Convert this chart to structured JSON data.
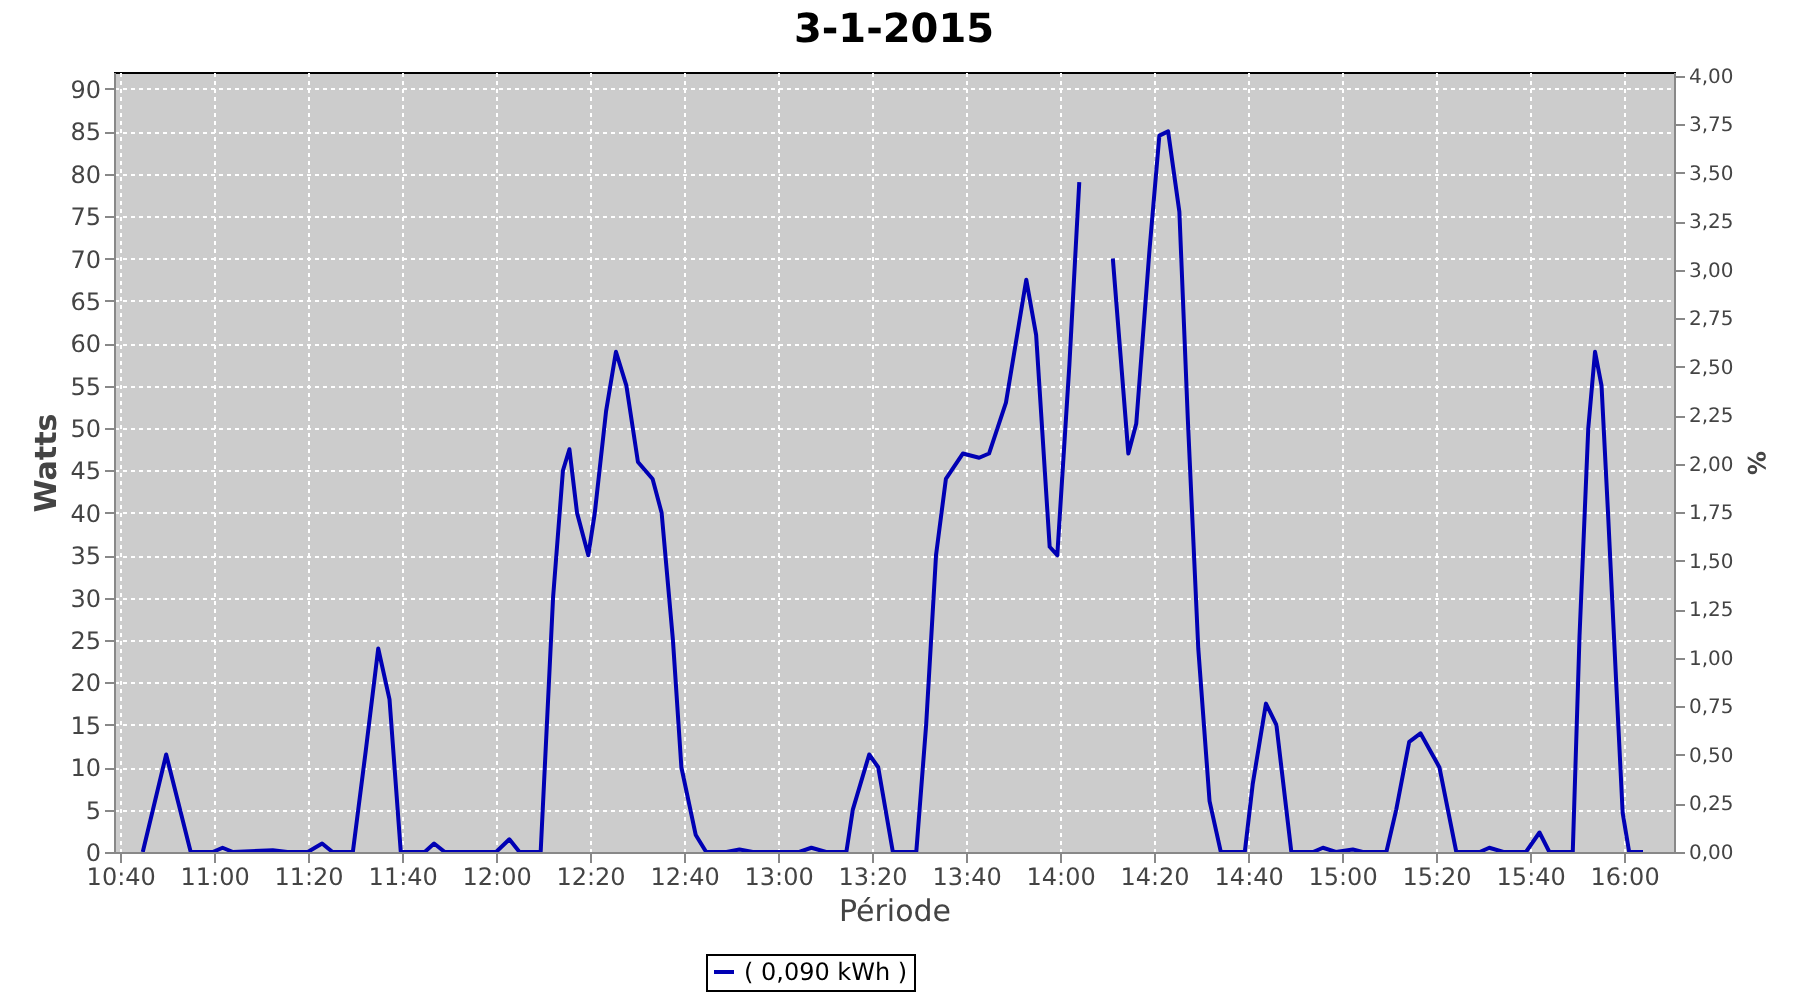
{
  "chart_data": {
    "type": "line",
    "title": "3-1-2015",
    "xlabel": "Période",
    "ylabel": "Watts",
    "y2label": "%",
    "x": [
      10.747,
      10.83,
      10.917,
      10.995,
      11.03,
      11.067,
      11.208,
      11.26,
      11.332,
      11.383,
      11.42,
      11.492,
      11.538,
      11.582,
      11.622,
      11.662,
      11.747,
      11.78,
      11.818,
      11.928,
      12.0,
      12.047,
      12.083,
      12.158,
      12.202,
      12.237,
      12.26,
      12.287,
      12.327,
      12.35,
      12.39,
      12.425,
      12.462,
      12.503,
      12.555,
      12.587,
      12.627,
      12.657,
      12.708,
      12.745,
      12.817,
      12.863,
      12.91,
      13.075,
      13.118,
      13.17,
      13.242,
      13.265,
      13.323,
      13.355,
      13.407,
      13.49,
      13.525,
      13.56,
      13.595,
      13.655,
      13.713,
      13.748,
      13.808,
      13.88,
      13.915,
      13.963,
      13.99,
      14.033,
      14.068,
      14.097,
      14.143,
      14.187,
      14.242,
      14.27,
      14.317,
      14.352,
      14.383,
      14.423,
      14.453,
      14.49,
      14.53,
      14.57,
      14.655,
      14.683,
      14.73,
      14.767,
      14.82,
      14.897,
      14.932,
      14.978,
      15.038,
      15.073,
      15.157,
      15.192,
      15.238,
      15.278,
      15.345,
      15.405,
      15.488,
      15.522,
      15.572,
      15.652,
      15.7,
      15.735,
      15.818,
      15.842,
      15.873,
      15.897,
      15.92,
      15.943,
      15.972,
      15.995,
      16.018,
      16.067
    ],
    "series": [
      {
        "name": "( 0,090 kWh )",
        "color": "#0000b4",
        "values": [
          0,
          11.5,
          0,
          0,
          0.5,
          0,
          0.2,
          0,
          0,
          1,
          0,
          0,
          12,
          24,
          18,
          0,
          0,
          1,
          0,
          0,
          0,
          1.5,
          0,
          0,
          30,
          45,
          47.5,
          40,
          35,
          40,
          52,
          59,
          55,
          46,
          44,
          40,
          25,
          10,
          2,
          0,
          0,
          0.3,
          0,
          0,
          0.5,
          0,
          0,
          5,
          11.5,
          10,
          0,
          0,
          15,
          35,
          44,
          47,
          46.5,
          47,
          53,
          67.5,
          61,
          36,
          35,
          57.5,
          79,
          null,
          null,
          70,
          47,
          50.5,
          71,
          84.5,
          85,
          75.5,
          51,
          24,
          6,
          0,
          0,
          8,
          17.5,
          15,
          0,
          0,
          0.5,
          0,
          0.3,
          0,
          0,
          5,
          13,
          14,
          10,
          0,
          0,
          0.5,
          0,
          0,
          2.3,
          0,
          0,
          25.5,
          50,
          59,
          55,
          40,
          20,
          4.6,
          0,
          0
        ]
      }
    ],
    "xlim": [
      10.645,
      16.177
    ],
    "xticks": [
      {
        "value": 10.667,
        "label": "10:40"
      },
      {
        "value": 11,
        "label": "11:00"
      },
      {
        "value": 11.333,
        "label": "11:20"
      },
      {
        "value": 11.667,
        "label": "11:40"
      },
      {
        "value": 12,
        "label": "12:00"
      },
      {
        "value": 12.333,
        "label": "12:20"
      },
      {
        "value": 12.667,
        "label": "12:40"
      },
      {
        "value": 13,
        "label": "13:00"
      },
      {
        "value": 13.333,
        "label": "13:20"
      },
      {
        "value": 13.667,
        "label": "13:40"
      },
      {
        "value": 14,
        "label": "14:00"
      },
      {
        "value": 14.333,
        "label": "14:20"
      },
      {
        "value": 14.667,
        "label": "14:40"
      },
      {
        "value": 15,
        "label": "15:00"
      },
      {
        "value": 15.333,
        "label": "15:20"
      },
      {
        "value": 15.667,
        "label": "15:40"
      },
      {
        "value": 16,
        "label": "16:00"
      }
    ],
    "ylim": [
      0,
      92
    ],
    "yticks": [
      0,
      5,
      10,
      15,
      20,
      25,
      30,
      35,
      40,
      45,
      50,
      55,
      60,
      65,
      70,
      75,
      80,
      85,
      90
    ],
    "y2lim": [
      0,
      4.02
    ],
    "y2ticks": [
      {
        "value": 0,
        "label": "0,00"
      },
      {
        "value": 0.25,
        "label": "0,25"
      },
      {
        "value": 0.5,
        "label": "0,50"
      },
      {
        "value": 0.75,
        "label": "0,75"
      },
      {
        "value": 1,
        "label": "1,00"
      },
      {
        "value": 1.25,
        "label": "1,25"
      },
      {
        "value": 1.5,
        "label": "1,50"
      },
      {
        "value": 1.75,
        "label": "1,75"
      },
      {
        "value": 2,
        "label": "2,00"
      },
      {
        "value": 2.25,
        "label": "2,25"
      },
      {
        "value": 2.5,
        "label": "2,50"
      },
      {
        "value": 2.75,
        "label": "2,75"
      },
      {
        "value": 3,
        "label": "3,00"
      },
      {
        "value": 3.25,
        "label": "3,25"
      },
      {
        "value": 3.5,
        "label": "3,50"
      },
      {
        "value": 3.75,
        "label": "3,75"
      },
      {
        "value": 4,
        "label": "4,00"
      }
    ],
    "grid": true,
    "legend": "bottom"
  }
}
